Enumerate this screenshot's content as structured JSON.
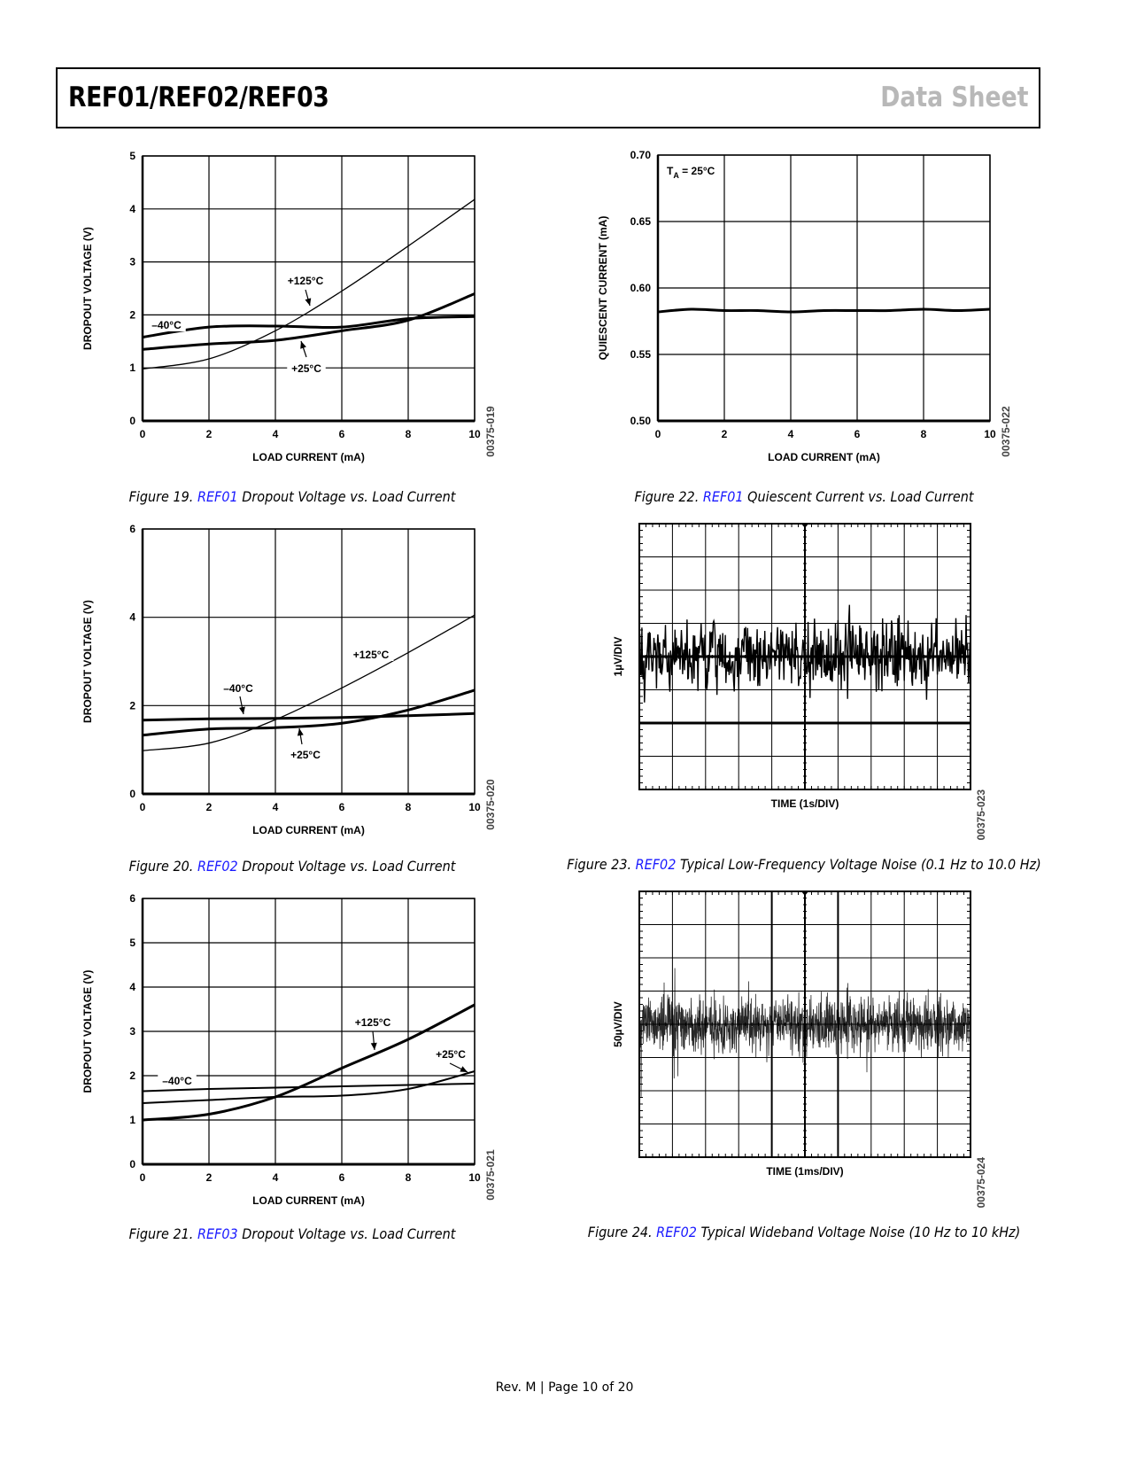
{
  "header": {
    "title": "REF01/REF02/REF03",
    "doc_type": "Data Sheet"
  },
  "footer": {
    "text": "Rev. M | Page 10 of 20"
  },
  "captions": [
    {
      "prefix": "Figure 19. ",
      "link": "REF01",
      "text": " Dropout Voltage vs. Load Current"
    },
    {
      "prefix": "Figure 20. ",
      "link": "REF02",
      "text": " Dropout Voltage vs. Load Current"
    },
    {
      "prefix": "Figure 21. ",
      "link": "REF03",
      "text": " Dropout Voltage vs. Load Current"
    },
    {
      "prefix": "Figure 22. ",
      "link": "REF01",
      "text": " Quiescent Current vs. Load Current"
    },
    {
      "prefix": "Figure 23. ",
      "link": "REF02",
      "text": " Typical Low-Frequency Voltage Noise (0.1 Hz to 10.0 Hz)"
    },
    {
      "prefix": "Figure 24. ",
      "link": "REF02",
      "text": " Typical Wideband Voltage Noise (10 Hz to 10 kHz)"
    }
  ],
  "colors": {
    "link": "#1a1aff",
    "header_gray": "#b8b8b8"
  },
  "chart_data": [
    {
      "id": "fig19",
      "type": "line",
      "code": "00375-019",
      "xlabel": "LOAD CURRENT (mA)",
      "ylabel": "DROPOUT VOLTAGE (V)",
      "xlim": [
        0,
        10
      ],
      "ylim": [
        0,
        5
      ],
      "grid": true,
      "xticks": [
        "0",
        "2",
        "4",
        "6",
        "8",
        "10"
      ],
      "yticks": [
        "0",
        "1",
        "2",
        "3",
        "4",
        "5"
      ],
      "x": [
        0,
        2,
        4,
        6,
        8,
        10
      ],
      "series": [
        {
          "name": "–40°C",
          "values": [
            1.58,
            1.77,
            1.79,
            1.77,
            1.93,
            1.97
          ]
        },
        {
          "name": "+25°C",
          "values": [
            1.35,
            1.45,
            1.52,
            1.7,
            1.9,
            2.4
          ]
        },
        {
          "name": "+125°C",
          "values": [
            0.98,
            1.17,
            1.7,
            2.45,
            3.3,
            4.18
          ]
        }
      ]
    },
    {
      "id": "fig20",
      "type": "line",
      "code": "00375-020",
      "xlabel": "LOAD CURRENT (mA)",
      "ylabel": "DROPOUT VOLTAGE (V)",
      "xlim": [
        0,
        10
      ],
      "ylim": [
        0,
        6
      ],
      "grid": true,
      "xticks": [
        "0",
        "2",
        "4",
        "6",
        "8",
        "10"
      ],
      "yticks": [
        "0",
        "2",
        "4",
        "6"
      ],
      "x": [
        0,
        2,
        4,
        6,
        8,
        10
      ],
      "series": [
        {
          "name": "–40°C",
          "values": [
            1.67,
            1.7,
            1.71,
            1.73,
            1.77,
            1.82
          ]
        },
        {
          "name": "+25°C",
          "values": [
            1.33,
            1.47,
            1.5,
            1.6,
            1.9,
            2.35
          ]
        },
        {
          "name": "+125°C",
          "values": [
            0.98,
            1.15,
            1.68,
            2.4,
            3.2,
            4.05
          ]
        }
      ]
    },
    {
      "id": "fig21",
      "type": "line",
      "code": "00375-021",
      "xlabel": "LOAD CURRENT (mA)",
      "ylabel": "DROPOUT VOLTAGE (V)",
      "xlim": [
        0,
        10
      ],
      "ylim": [
        0,
        6
      ],
      "grid": true,
      "xticks": [
        "0",
        "2",
        "4",
        "6",
        "8",
        "10"
      ],
      "yticks": [
        "0",
        "1",
        "2",
        "3",
        "4",
        "5",
        "6"
      ],
      "x": [
        0,
        2,
        4,
        6,
        8,
        10
      ],
      "series": [
        {
          "name": "–40°C",
          "values": [
            1.65,
            1.7,
            1.73,
            1.76,
            1.79,
            1.82
          ]
        },
        {
          "name": "+25°C",
          "values": [
            1.38,
            1.45,
            1.52,
            1.55,
            1.7,
            2.1
          ]
        },
        {
          "name": "+125°C",
          "values": [
            1.0,
            1.13,
            1.52,
            2.17,
            2.82,
            3.6
          ]
        }
      ]
    },
    {
      "id": "fig22",
      "type": "line",
      "code": "00375-022",
      "xlabel": "LOAD CURRENT (mA)",
      "ylabel": "QUIESCENT CURRENT (mA)",
      "xlim": [
        0,
        10
      ],
      "ylim": [
        0.5,
        0.7
      ],
      "grid": true,
      "xticks": [
        "0",
        "2",
        "4",
        "6",
        "8",
        "10"
      ],
      "yticks": [
        "0.50",
        "0.55",
        "0.60",
        "0.65",
        "0.70"
      ],
      "annotation": {
        "main": "T",
        "sub": "A",
        "rest": " = 25°C"
      },
      "x": [
        0,
        1,
        2,
        3,
        4,
        5,
        6,
        7,
        8,
        9,
        10
      ],
      "series": [
        {
          "values": [
            0.582,
            0.584,
            0.583,
            0.583,
            0.582,
            0.583,
            0.583,
            0.583,
            0.584,
            0.583,
            0.584
          ]
        }
      ]
    },
    {
      "id": "fig23",
      "type": "line",
      "code": "00375-023",
      "xlabel": "TIME (1s/DIV)",
      "ylabel": "1µV/DIV",
      "grid": true
    },
    {
      "id": "fig24",
      "type": "line",
      "code": "00375-024",
      "xlabel": "TIME (1ms/DIV)",
      "ylabel": "50µV/DIV",
      "grid": true
    }
  ]
}
